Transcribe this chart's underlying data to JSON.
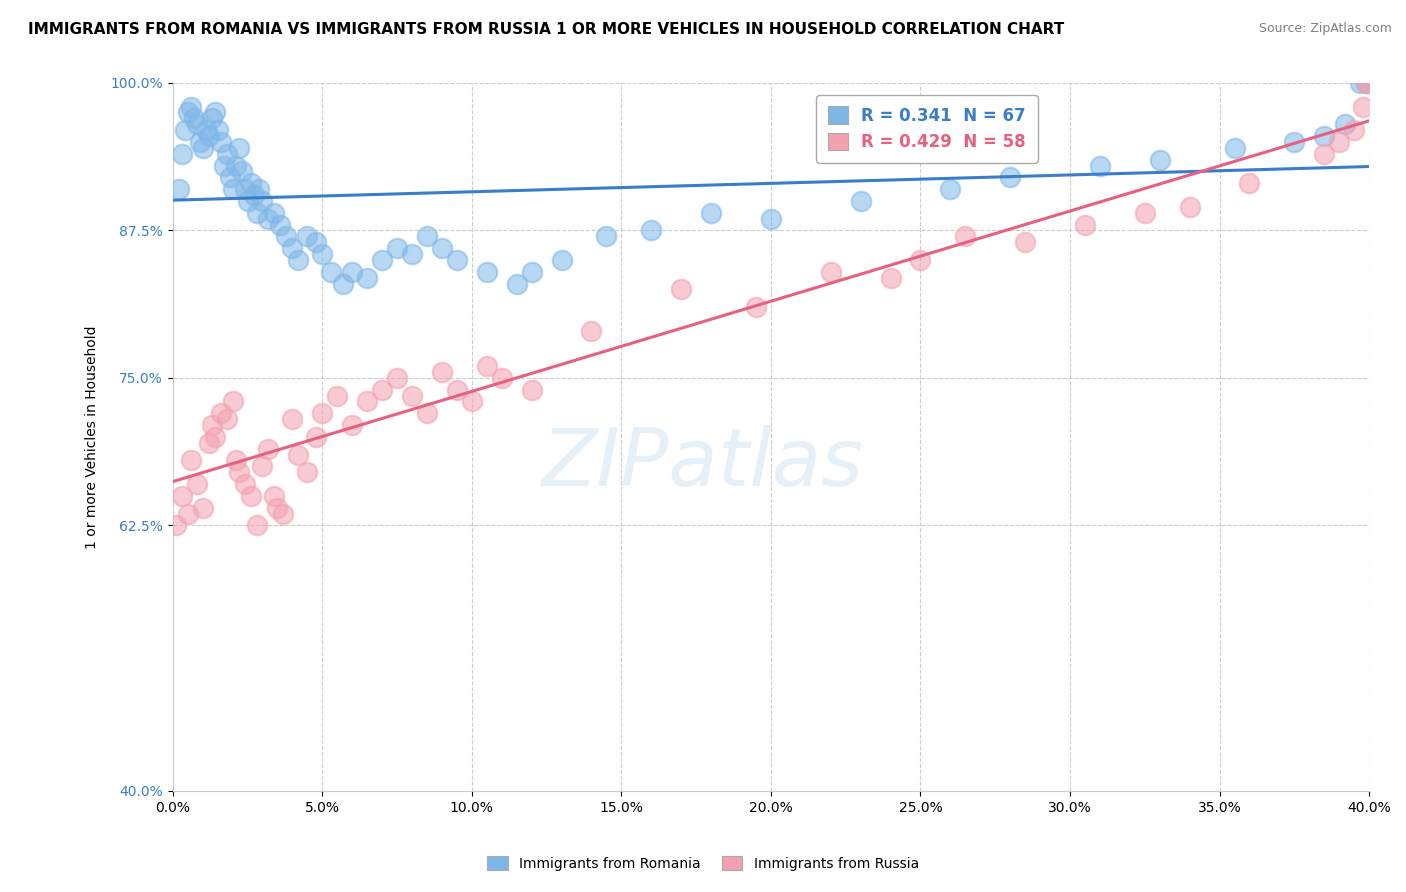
{
  "title": "IMMIGRANTS FROM ROMANIA VS IMMIGRANTS FROM RUSSIA 1 OR MORE VEHICLES IN HOUSEHOLD CORRELATION CHART",
  "source": "Source: ZipAtlas.com",
  "ylabel": "1 or more Vehicles in Household",
  "xlim": [
    0.0,
    40.0
  ],
  "ylim": [
    40.0,
    100.0
  ],
  "xticks": [
    0.0,
    5.0,
    10.0,
    15.0,
    20.0,
    25.0,
    30.0,
    35.0,
    40.0
  ],
  "yticks": [
    40.0,
    62.5,
    75.0,
    87.5,
    100.0
  ],
  "romania_color": "#7EB6E8",
  "russia_color": "#F4A0B0",
  "romania_line_color": "#3A7EC8",
  "russia_line_color": "#E86080",
  "romania_R": 0.341,
  "romania_N": 67,
  "russia_R": 0.429,
  "russia_N": 58,
  "romania_x": [
    0.2,
    0.3,
    0.4,
    0.5,
    0.6,
    0.7,
    0.8,
    0.9,
    1.0,
    1.1,
    1.2,
    1.3,
    1.4,
    1.5,
    1.6,
    1.7,
    1.8,
    1.9,
    2.0,
    2.1,
    2.2,
    2.3,
    2.4,
    2.5,
    2.6,
    2.7,
    2.8,
    2.9,
    3.0,
    3.2,
    3.4,
    3.6,
    3.8,
    4.0,
    4.2,
    4.5,
    4.8,
    5.0,
    5.3,
    5.7,
    6.0,
    6.5,
    7.0,
    7.5,
    8.0,
    8.5,
    9.0,
    9.5,
    10.5,
    11.5,
    12.0,
    13.0,
    14.5,
    16.0,
    18.0,
    20.0,
    23.0,
    26.0,
    28.0,
    31.0,
    33.0,
    35.5,
    37.5,
    38.5,
    39.2,
    39.7,
    39.9
  ],
  "romania_y": [
    91.0,
    94.0,
    96.0,
    97.5,
    98.0,
    97.0,
    96.5,
    95.0,
    94.5,
    96.0,
    95.5,
    97.0,
    97.5,
    96.0,
    95.0,
    93.0,
    94.0,
    92.0,
    91.0,
    93.0,
    94.5,
    92.5,
    91.0,
    90.0,
    91.5,
    90.5,
    89.0,
    91.0,
    90.0,
    88.5,
    89.0,
    88.0,
    87.0,
    86.0,
    85.0,
    87.0,
    86.5,
    85.5,
    84.0,
    83.0,
    84.0,
    83.5,
    85.0,
    86.0,
    85.5,
    87.0,
    86.0,
    85.0,
    84.0,
    83.0,
    84.0,
    85.0,
    87.0,
    87.5,
    89.0,
    88.5,
    90.0,
    91.0,
    92.0,
    93.0,
    93.5,
    94.5,
    95.0,
    95.5,
    96.5,
    100.0,
    100.0
  ],
  "russia_x": [
    0.1,
    0.3,
    0.5,
    0.6,
    0.8,
    1.0,
    1.2,
    1.3,
    1.4,
    1.6,
    1.8,
    2.0,
    2.1,
    2.2,
    2.4,
    2.6,
    2.8,
    3.0,
    3.2,
    3.4,
    3.5,
    3.7,
    4.0,
    4.2,
    4.5,
    4.8,
    5.0,
    5.5,
    6.0,
    6.5,
    7.0,
    7.5,
    8.0,
    8.5,
    9.0,
    9.5,
    10.0,
    10.5,
    11.0,
    12.0,
    14.0,
    17.0,
    19.5,
    22.0,
    24.0,
    25.0,
    26.5,
    28.5,
    30.5,
    32.5,
    34.0,
    36.0,
    38.5,
    39.0,
    39.5,
    39.8,
    39.9,
    40.0
  ],
  "russia_y": [
    62.5,
    65.0,
    63.5,
    68.0,
    66.0,
    64.0,
    69.5,
    71.0,
    70.0,
    72.0,
    71.5,
    73.0,
    68.0,
    67.0,
    66.0,
    65.0,
    62.5,
    67.5,
    69.0,
    65.0,
    64.0,
    63.5,
    71.5,
    68.5,
    67.0,
    70.0,
    72.0,
    73.5,
    71.0,
    73.0,
    74.0,
    75.0,
    73.5,
    72.0,
    75.5,
    74.0,
    73.0,
    76.0,
    75.0,
    74.0,
    79.0,
    82.5,
    81.0,
    84.0,
    83.5,
    85.0,
    87.0,
    86.5,
    88.0,
    89.0,
    89.5,
    91.5,
    94.0,
    95.0,
    96.0,
    98.0,
    100.0,
    100.0
  ],
  "background_color": "#FFFFFF",
  "grid_color": "#CCCCCC",
  "title_fontsize": 11,
  "axis_label_fontsize": 10,
  "tick_fontsize": 10,
  "legend_fontsize": 12
}
